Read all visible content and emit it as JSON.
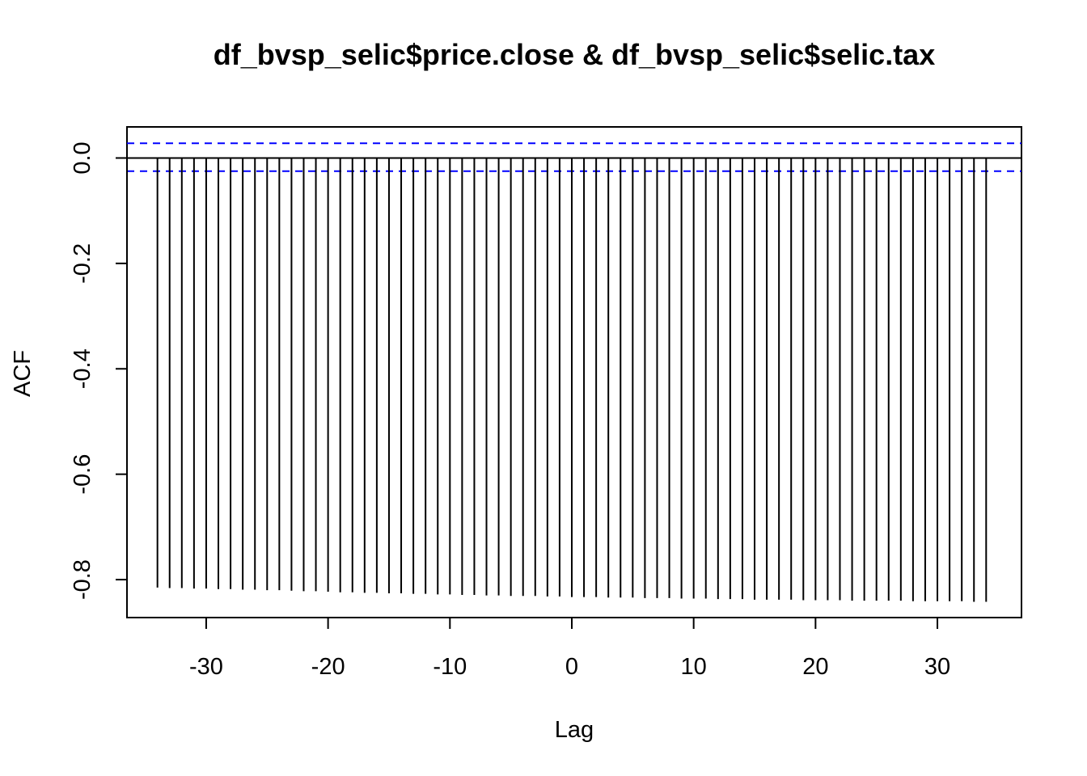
{
  "chart_data": {
    "type": "bar",
    "title": "df_bvsp_selic$price.close & df_bvsp_selic$selic.tax",
    "xlabel": "Lag",
    "ylabel": "ACF",
    "xlim": [
      -36.5,
      36.9
    ],
    "ylim": [
      -0.872,
      0.059
    ],
    "x_ticks": [
      -30,
      -20,
      -10,
      0,
      10,
      20,
      30
    ],
    "x_tick_labels": [
      "-30",
      "-20",
      "-10",
      "0",
      "10",
      "20",
      "30"
    ],
    "y_ticks": [
      0.0,
      -0.2,
      -0.4,
      -0.6,
      -0.8
    ],
    "y_tick_labels": [
      "0.0",
      "-0.2",
      "-0.4",
      "-0.6",
      "-0.8"
    ],
    "zero_line": 0.0,
    "confidence_bounds": [
      0.028,
      -0.025
    ],
    "confidence_color": "#0000ff",
    "bar_color": "#000000",
    "grid": false,
    "series": [
      {
        "lags": [
          -34,
          -33,
          -32,
          -31,
          -30,
          -29,
          -28,
          -27,
          -26,
          -25,
          -24,
          -23,
          -22,
          -21,
          -20,
          -19,
          -18,
          -17,
          -16,
          -15,
          -14,
          -13,
          -12,
          -11,
          -10,
          -9,
          -8,
          -7,
          -6,
          -5,
          -4,
          -3,
          -2,
          -1,
          0,
          1,
          2,
          3,
          4,
          5,
          6,
          7,
          8,
          9,
          10,
          11,
          12,
          13,
          14,
          15,
          16,
          17,
          18,
          19,
          20,
          21,
          22,
          23,
          24,
          25,
          26,
          27,
          28,
          29,
          30,
          31,
          32,
          33,
          34
        ],
        "values": [
          -0.815,
          -0.816,
          -0.816,
          -0.817,
          -0.817,
          -0.818,
          -0.818,
          -0.819,
          -0.819,
          -0.82,
          -0.82,
          -0.821,
          -0.822,
          -0.822,
          -0.823,
          -0.824,
          -0.824,
          -0.825,
          -0.825,
          -0.826,
          -0.826,
          -0.827,
          -0.827,
          -0.828,
          -0.828,
          -0.829,
          -0.829,
          -0.83,
          -0.83,
          -0.831,
          -0.831,
          -0.831,
          -0.832,
          -0.832,
          -0.833,
          -0.833,
          -0.833,
          -0.834,
          -0.834,
          -0.834,
          -0.835,
          -0.835,
          -0.835,
          -0.836,
          -0.836,
          -0.836,
          -0.837,
          -0.837,
          -0.837,
          -0.838,
          -0.838,
          -0.838,
          -0.838,
          -0.839,
          -0.839,
          -0.839,
          -0.839,
          -0.84,
          -0.84,
          -0.84,
          -0.84,
          -0.84,
          -0.841,
          -0.841,
          -0.841,
          -0.841,
          -0.841,
          -0.842,
          -0.842
        ]
      }
    ]
  }
}
